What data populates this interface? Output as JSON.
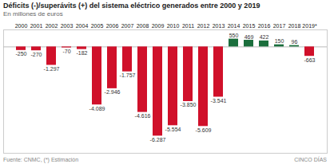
{
  "chart_data": {
    "type": "bar",
    "title": "Déficits (-)/superávits (+) del sistema eléctrico generados entre 2000 y 2019",
    "subtitle": "En millones de euros",
    "annotations": [
      "Fuente: CNMC, (*) Estimación",
      "CINCO DÍAS"
    ],
    "categories": [
      "2000",
      "2001",
      "2002",
      "2003",
      "2004",
      "2005",
      "2006",
      "2007",
      "2008",
      "2009",
      "2010",
      "2011",
      "2012",
      "2013",
      "2014",
      "2015",
      "2016",
      "2017",
      "2018",
      "2019*"
    ],
    "values": [
      -250,
      -270,
      -1297,
      -70,
      -182,
      -4089,
      -2946,
      -1757,
      -4616,
      -6287,
      -5554,
      -3850,
      -5609,
      -3541,
      550,
      469,
      422,
      150,
      96,
      -663
    ],
    "value_labels": [
      "-250",
      "-270",
      "-1.297",
      "-70",
      "-182",
      "-4.089",
      "-2.946",
      "-1.757",
      "-4.616",
      "-6.287",
      "-5.554",
      "-3.850",
      "-5.609",
      "-3.541",
      "550",
      "469",
      "422",
      "150",
      "96",
      "-663"
    ],
    "colors": [
      "#d0102a",
      "#d0102a",
      "#d0102a",
      "#d0102a",
      "#d0102a",
      "#d0102a",
      "#d0102a",
      "#d0102a",
      "#d0102a",
      "#d0102a",
      "#d0102a",
      "#d0102a",
      "#d0102a",
      "#d0102a",
      "#1a6e3c",
      "#1a6e3c",
      "#1a6e3c",
      "#1a6e3c",
      "#1a6e3c",
      "#d0102a"
    ],
    "ylim": [
      -7500,
      1200
    ],
    "data_labels": true,
    "tick_labels": "x",
    "grid": false
  }
}
